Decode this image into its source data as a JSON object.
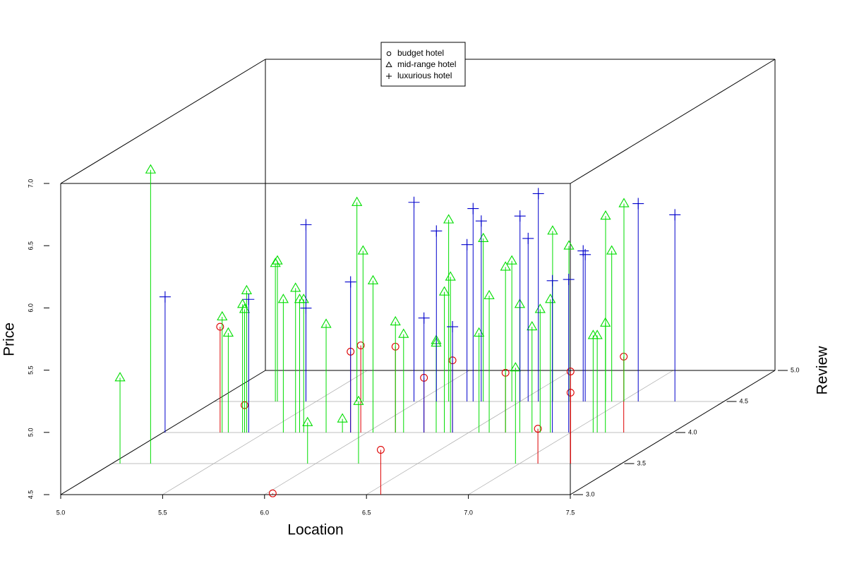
{
  "chart_data": {
    "type": "scatter3d",
    "x_label": "Location",
    "y_label": "Review",
    "z_label": "Price",
    "xlim": [
      5.0,
      7.5
    ],
    "ylim": [
      3.0,
      5.0
    ],
    "zlim": [
      4.5,
      7.0
    ],
    "xticks": [
      {
        "value": 5.0,
        "label": "5.0"
      },
      {
        "value": 5.5,
        "label": "5.5"
      },
      {
        "value": 6.0,
        "label": "6.0"
      },
      {
        "value": 6.5,
        "label": "6.5"
      },
      {
        "value": 7.0,
        "label": "7.0"
      },
      {
        "value": 7.5,
        "label": "7.5"
      }
    ],
    "yticks": [
      {
        "value": 3.0,
        "label": "3.0"
      },
      {
        "value": 3.5,
        "label": "3.5"
      },
      {
        "value": 4.0,
        "label": "4.0"
      },
      {
        "value": 4.5,
        "label": "4.5"
      },
      {
        "value": 5.0,
        "label": "5.0"
      }
    ],
    "zticks": [
      {
        "value": 4.5,
        "label": "4.5"
      },
      {
        "value": 5.0,
        "label": "5.0"
      },
      {
        "value": 5.5,
        "label": "5.5"
      },
      {
        "value": 6.0,
        "label": "6.0"
      },
      {
        "value": 6.5,
        "label": "6.5"
      },
      {
        "value": 7.0,
        "label": "7.0"
      }
    ],
    "grid": true,
    "legend_position": "top",
    "series": [
      {
        "name": "budget hotel",
        "marker": "circle",
        "color": "#dd0000",
        "x": [
          6.04,
          6.57,
          5.28,
          5.4,
          5.92,
          5.97,
          6.14,
          6.28,
          6.42,
          6.68,
          7.09,
          7.25,
          7.25,
          7.26
        ],
        "y": [
          3.0,
          3.0,
          4.0,
          4.0,
          4.0,
          4.0,
          4.0,
          4.0,
          4.0,
          4.0,
          3.5,
          3.5,
          3.5,
          4.0
        ],
        "z": [
          4.51,
          4.86,
          5.35,
          4.72,
          5.15,
          5.2,
          5.19,
          4.94,
          5.08,
          4.98,
          4.78,
          5.24,
          5.07,
          5.11
        ]
      },
      {
        "name": "mid-range hotel",
        "marker": "triangle",
        "color": "#00dd00",
        "x": [
          5.04,
          5.19,
          5.29,
          5.32,
          5.39,
          5.4,
          5.41,
          5.3,
          5.31,
          5.59,
          5.65,
          5.67,
          5.69,
          5.96,
          5.8,
          5.88,
          5.7,
          6.21,
          5.73,
          6.03,
          6.14,
          6.18,
          6.34,
          6.34,
          6.38,
          6.15,
          6.41,
          6.55,
          6.32,
          6.6,
          6.68,
          6.46,
          6.98,
          6.75,
          6.81,
          6.85,
          6.9,
          6.66,
          6.74,
          7.11,
          7.13,
          6.92,
          7.17,
          6.95,
          7.01
        ],
        "y": [
          3.5,
          3.5,
          4.0,
          4.0,
          4.0,
          4.0,
          4.0,
          4.5,
          4.5,
          4.0,
          4.0,
          4.0,
          4.0,
          3.5,
          4.0,
          4.0,
          4.5,
          3.5,
          4.5,
          4.0,
          4.0,
          4.0,
          4.0,
          4.0,
          4.0,
          4.5,
          4.0,
          4.0,
          4.5,
          4.0,
          4.0,
          4.5,
          3.5,
          4.0,
          4.0,
          4.0,
          4.0,
          4.5,
          4.5,
          4.0,
          4.0,
          4.5,
          4.0,
          4.5,
          4.5
        ],
        "z": [
          5.19,
          6.86,
          5.43,
          5.3,
          5.53,
          5.49,
          5.64,
          5.61,
          5.63,
          5.57,
          5.66,
          5.57,
          5.57,
          4.83,
          5.37,
          4.61,
          6.1,
          5.0,
          5.71,
          5.72,
          5.39,
          5.29,
          5.24,
          5.22,
          5.63,
          5.96,
          5.75,
          5.3,
          5.81,
          5.6,
          5.83,
          5.63,
          5.27,
          5.53,
          5.35,
          5.49,
          5.57,
          5.87,
          5.75,
          5.28,
          5.28,
          5.99,
          5.38,
          5.71,
          6.09
        ]
      },
      {
        "name": "luxurious hotel",
        "marker": "plus",
        "color": "#0000cc",
        "x": [
          5.01,
          5.42,
          5.45,
          5.45,
          5.92,
          5.98,
          6.28,
          6.09,
          6.42,
          6.24,
          6.27,
          6.31,
          6.5,
          6.54,
          6.59,
          6.91,
          6.99,
          6.81,
          6.82,
          7.08,
          7.26
        ],
        "y": [
          4.0,
          4.0,
          4.5,
          4.5,
          4.0,
          4.5,
          4.0,
          4.5,
          4.0,
          4.5,
          4.5,
          4.5,
          4.5,
          4.5,
          4.5,
          4.0,
          4.0,
          4.5,
          4.5,
          4.5,
          4.5
        ],
        "z": [
          5.59,
          5.57,
          5.92,
          5.25,
          5.71,
          6.1,
          5.42,
          5.87,
          5.35,
          5.76,
          6.05,
          5.95,
          5.99,
          5.81,
          6.17,
          5.72,
          5.73,
          5.71,
          5.68,
          6.09,
          6.0
        ]
      }
    ]
  }
}
